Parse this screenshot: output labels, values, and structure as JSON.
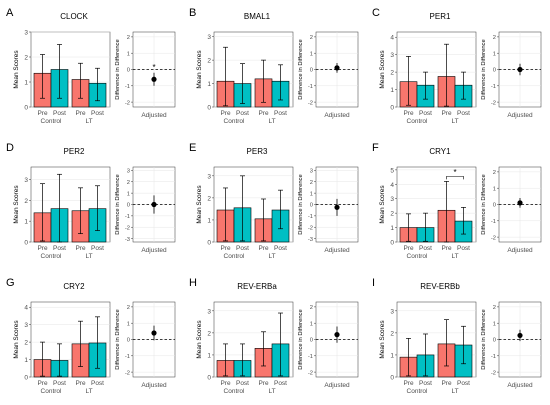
{
  "figure": {
    "colors": {
      "pre": "#F8766D",
      "post": "#00BFC4",
      "panel_bg": "#FFFFFF",
      "grid": "#E6E6E6",
      "axis": "#333333",
      "ref_line": "#000000"
    },
    "bar_ylabel": "Mean Scores",
    "adj_ylabel": "Difference in Difference",
    "adj_xlabel": "Adjusted",
    "group_labels": [
      "Control",
      "LT"
    ],
    "phase_labels": [
      "Pre",
      "Post"
    ]
  },
  "chart_data": [
    {
      "letter": "A",
      "title": "CLOCK",
      "type": "bar",
      "bar_ylim": [
        0,
        3
      ],
      "bar_yticks": [
        0,
        1,
        2,
        3
      ],
      "bars": [
        {
          "group": "Control",
          "phase": "Pre",
          "value": 1.35,
          "low": 0.35,
          "high": 2.1
        },
        {
          "group": "Control",
          "phase": "Post",
          "value": 1.5,
          "low": 0.35,
          "high": 2.5
        },
        {
          "group": "LT",
          "phase": "Pre",
          "value": 1.1,
          "low": 0.35,
          "high": 1.75
        },
        {
          "group": "LT",
          "phase": "Post",
          "value": 0.95,
          "low": 0.25,
          "high": 1.55
        }
      ],
      "bar_sig": null,
      "adj": {
        "ylim": [
          -2.3,
          2.3
        ],
        "yticks": [
          -2,
          -1,
          0,
          1,
          2
        ],
        "value": -0.6,
        "low": -1.0,
        "high": -0.2,
        "star": "*"
      }
    },
    {
      "letter": "B",
      "title": "BMAL1",
      "type": "bar",
      "bar_ylim": [
        0,
        3.2
      ],
      "bar_yticks": [
        0,
        1,
        2,
        3
      ],
      "bars": [
        {
          "group": "Control",
          "phase": "Pre",
          "value": 1.1,
          "low": 0.05,
          "high": 2.55
        },
        {
          "group": "Control",
          "phase": "Post",
          "value": 1.0,
          "low": 0.15,
          "high": 1.85
        },
        {
          "group": "LT",
          "phase": "Pre",
          "value": 1.2,
          "low": 0.2,
          "high": 2.0
        },
        {
          "group": "LT",
          "phase": "Post",
          "value": 1.1,
          "low": 0.3,
          "high": 1.8
        }
      ],
      "bar_sig": null,
      "adj": {
        "ylim": [
          -2.3,
          2.3
        ],
        "yticks": [
          -2,
          -1,
          0,
          1,
          2
        ],
        "value": 0.1,
        "low": -0.2,
        "high": 0.4,
        "star": ""
      }
    },
    {
      "letter": "C",
      "title": "PER1",
      "type": "bar",
      "bar_ylim": [
        0,
        4.3
      ],
      "bar_yticks": [
        0,
        1,
        2,
        3,
        4
      ],
      "bars": [
        {
          "group": "Control",
          "phase": "Pre",
          "value": 1.45,
          "low": 0.1,
          "high": 2.9
        },
        {
          "group": "Control",
          "phase": "Post",
          "value": 1.25,
          "low": 0.45,
          "high": 2.0
        },
        {
          "group": "LT",
          "phase": "Pre",
          "value": 1.75,
          "low": 0.05,
          "high": 3.6
        },
        {
          "group": "LT",
          "phase": "Post",
          "value": 1.25,
          "low": 0.45,
          "high": 2.0
        }
      ],
      "bar_sig": null,
      "adj": {
        "ylim": [
          -2.3,
          2.3
        ],
        "yticks": [
          -2,
          -1,
          0,
          1,
          2
        ],
        "value": 0.0,
        "low": -0.35,
        "high": 0.35,
        "star": ""
      }
    },
    {
      "letter": "D",
      "title": "PER2",
      "type": "bar",
      "bar_ylim": [
        0,
        3.6
      ],
      "bar_yticks": [
        0,
        1,
        2,
        3
      ],
      "bars": [
        {
          "group": "Control",
          "phase": "Pre",
          "value": 1.4,
          "low": 0.05,
          "high": 2.8
        },
        {
          "group": "Control",
          "phase": "Post",
          "value": 1.6,
          "low": 0.0,
          "high": 3.25
        },
        {
          "group": "LT",
          "phase": "Pre",
          "value": 1.5,
          "low": 0.4,
          "high": 2.6
        },
        {
          "group": "LT",
          "phase": "Post",
          "value": 1.6,
          "low": 0.55,
          "high": 2.7
        }
      ],
      "bar_sig": null,
      "adj": {
        "ylim": [
          -3.3,
          3.3
        ],
        "yticks": [
          -3,
          -2,
          -1,
          0,
          1,
          2,
          3
        ],
        "value": 0.0,
        "low": -0.8,
        "high": 0.8,
        "star": ""
      }
    },
    {
      "letter": "E",
      "title": "PER3",
      "type": "bar",
      "bar_ylim": [
        0,
        3.4
      ],
      "bar_yticks": [
        0,
        1,
        2,
        3
      ],
      "bars": [
        {
          "group": "Control",
          "phase": "Pre",
          "value": 1.45,
          "low": 0.05,
          "high": 2.45
        },
        {
          "group": "Control",
          "phase": "Post",
          "value": 1.55,
          "low": 0.05,
          "high": 3.0
        },
        {
          "group": "LT",
          "phase": "Pre",
          "value": 1.05,
          "low": 0.05,
          "high": 1.95
        },
        {
          "group": "LT",
          "phase": "Post",
          "value": 1.45,
          "low": 0.6,
          "high": 2.35
        }
      ],
      "bar_sig": null,
      "adj": {
        "ylim": [
          -3.3,
          3.3
        ],
        "yticks": [
          -3,
          -2,
          -1,
          0,
          1,
          2,
          3
        ],
        "value": -0.25,
        "low": -1.0,
        "high": 0.5,
        "star": ""
      }
    },
    {
      "letter": "F",
      "title": "CRY1",
      "type": "bar",
      "bar_ylim": [
        0,
        5.2
      ],
      "bar_yticks": [
        0,
        1,
        2,
        3,
        4,
        5
      ],
      "bars": [
        {
          "group": "Control",
          "phase": "Pre",
          "value": 1.0,
          "low": 0.05,
          "high": 1.95
        },
        {
          "group": "Control",
          "phase": "Post",
          "value": 1.0,
          "low": 0.05,
          "high": 2.0
        },
        {
          "group": "LT",
          "phase": "Pre",
          "value": 2.2,
          "low": 0.0,
          "high": 4.2
        },
        {
          "group": "LT",
          "phase": "Post",
          "value": 1.45,
          "low": 0.55,
          "high": 2.4
        }
      ],
      "bar_sig": {
        "group": "LT",
        "y": 4.55,
        "star": "*"
      },
      "adj": {
        "ylim": [
          -2.3,
          2.3
        ],
        "yticks": [
          -2,
          -1,
          0,
          1,
          2
        ],
        "value": 0.1,
        "low": -0.2,
        "high": 0.4,
        "star": ""
      }
    },
    {
      "letter": "G",
      "title": "CRY2",
      "type": "bar",
      "bar_ylim": [
        0,
        4.3
      ],
      "bar_yticks": [
        0,
        1,
        2,
        3,
        4
      ],
      "bars": [
        {
          "group": "Control",
          "phase": "Pre",
          "value": 1.0,
          "low": 0.05,
          "high": 2.0
        },
        {
          "group": "Control",
          "phase": "Post",
          "value": 0.95,
          "low": 0.05,
          "high": 1.9
        },
        {
          "group": "LT",
          "phase": "Pre",
          "value": 1.9,
          "low": 0.6,
          "high": 3.2
        },
        {
          "group": "LT",
          "phase": "Post",
          "value": 1.95,
          "low": 0.5,
          "high": 3.45
        }
      ],
      "bar_sig": null,
      "adj": {
        "ylim": [
          -2.3,
          2.3
        ],
        "yticks": [
          -2,
          -1,
          0,
          1,
          2
        ],
        "value": 0.4,
        "low": -0.05,
        "high": 0.85,
        "star": ""
      }
    },
    {
      "letter": "H",
      "title": "REV-ERBa",
      "type": "bar",
      "bar_ylim": [
        0,
        3.4
      ],
      "bar_yticks": [
        0,
        1,
        2,
        3
      ],
      "bars": [
        {
          "group": "Control",
          "phase": "Pre",
          "value": 0.75,
          "low": 0.05,
          "high": 1.5
        },
        {
          "group": "Control",
          "phase": "Post",
          "value": 0.75,
          "low": 0.05,
          "high": 1.5
        },
        {
          "group": "LT",
          "phase": "Pre",
          "value": 1.3,
          "low": 0.5,
          "high": 2.05
        },
        {
          "group": "LT",
          "phase": "Post",
          "value": 1.5,
          "low": 0.05,
          "high": 2.9
        }
      ],
      "bar_sig": null,
      "adj": {
        "ylim": [
          -2.3,
          2.3
        ],
        "yticks": [
          -2,
          -1,
          0,
          1,
          2
        ],
        "value": 0.3,
        "low": -0.2,
        "high": 0.8,
        "star": ""
      }
    },
    {
      "letter": "I",
      "title": "REV-ERBb",
      "type": "bar",
      "bar_ylim": [
        0,
        3.4
      ],
      "bar_yticks": [
        0,
        1,
        2,
        3
      ],
      "bars": [
        {
          "group": "Control",
          "phase": "Pre",
          "value": 0.9,
          "low": 0.05,
          "high": 1.75
        },
        {
          "group": "Control",
          "phase": "Post",
          "value": 1.0,
          "low": 0.05,
          "high": 1.95
        },
        {
          "group": "LT",
          "phase": "Pre",
          "value": 1.5,
          "low": 0.5,
          "high": 2.6
        },
        {
          "group": "LT",
          "phase": "Post",
          "value": 1.45,
          "low": 0.6,
          "high": 2.3
        }
      ],
      "bar_sig": null,
      "adj": {
        "ylim": [
          -2.3,
          2.3
        ],
        "yticks": [
          -2,
          -1,
          0,
          1,
          2
        ],
        "value": 0.25,
        "low": -0.1,
        "high": 0.6,
        "star": ""
      }
    }
  ]
}
